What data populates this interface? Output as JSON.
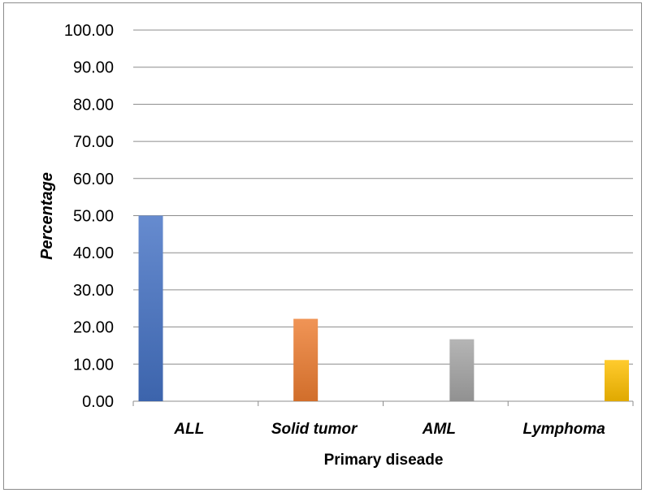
{
  "chart_data": {
    "type": "bar",
    "categories": [
      "ALL",
      "Solid tumor",
      "AML",
      "Lymphoma"
    ],
    "values": [
      50.0,
      22.2,
      16.7,
      11.1
    ],
    "xlabel": "Primary diseade",
    "ylabel": "Percentage",
    "ylim": [
      0,
      100
    ],
    "yticks": [
      "0.00",
      "10.00",
      "20.00",
      "30.00",
      "40.00",
      "50.00",
      "60.00",
      "70.00",
      "80.00",
      "90.00",
      "100.00"
    ],
    "grid": true,
    "legend": "none",
    "colors": [
      "#4472c4",
      "#ed7d31",
      "#a5a5a5",
      "#ffc000"
    ]
  }
}
